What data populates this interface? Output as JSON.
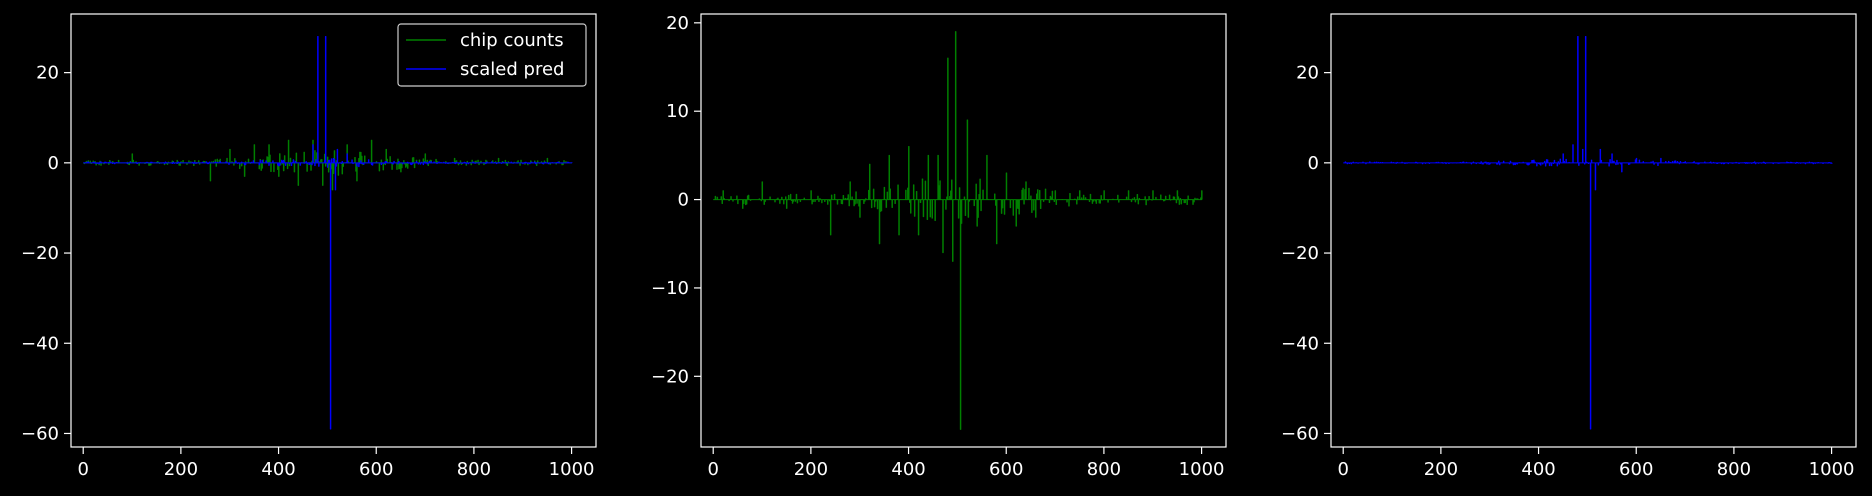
{
  "figure": {
    "background": "#000000",
    "foreground": "#ffffff"
  },
  "chart_data": [
    {
      "type": "line",
      "xlim": [
        -25,
        1050
      ],
      "ylim": [
        -63,
        33
      ],
      "xticks": [
        0,
        200,
        400,
        600,
        800,
        1000
      ],
      "yticks": [
        -60,
        -40,
        -20,
        0,
        20
      ],
      "xticklabels": [
        "0",
        "200",
        "400",
        "600",
        "800",
        "1000"
      ],
      "yticklabels": [
        "−60",
        "−40",
        "−20",
        "0",
        "20"
      ],
      "legend": {
        "loc": "upper right",
        "entries": [
          "chip counts",
          "scaled pred"
        ]
      },
      "series": [
        {
          "name": "chip counts",
          "color": "#008000",
          "x_range": [
            0,
            1000
          ],
          "baseline": 0,
          "spikes": [
            [
              100,
              2
            ],
            [
              260,
              -4
            ],
            [
              300,
              3
            ],
            [
              330,
              -3
            ],
            [
              350,
              4
            ],
            [
              380,
              4
            ],
            [
              400,
              -3
            ],
            [
              420,
              5
            ],
            [
              440,
              -5
            ],
            [
              470,
              5
            ],
            [
              490,
              -5
            ],
            [
              510,
              -6
            ],
            [
              540,
              4
            ],
            [
              560,
              -4
            ],
            [
              590,
              5
            ],
            [
              620,
              3
            ],
            [
              650,
              -2
            ],
            [
              700,
              2
            ],
            [
              760,
              1
            ],
            [
              850,
              1
            ],
            [
              950,
              1
            ]
          ]
        },
        {
          "name": "scaled pred",
          "color": "#0000ff",
          "x_range": [
            0,
            1000
          ],
          "baseline": 0,
          "spikes": [
            [
              480,
              28
            ],
            [
              496,
              28
            ],
            [
              505,
              -59
            ],
            [
              520,
              3
            ],
            [
              540,
              2
            ],
            [
              470,
              4
            ],
            [
              515,
              -6
            ]
          ]
        }
      ]
    },
    {
      "type": "line",
      "xlim": [
        -25,
        1050
      ],
      "ylim": [
        -28,
        21
      ],
      "xticks": [
        0,
        200,
        400,
        600,
        800,
        1000
      ],
      "yticks": [
        -20,
        -10,
        0,
        10,
        20
      ],
      "xticklabels": [
        "0",
        "200",
        "400",
        "600",
        "800",
        "1000"
      ],
      "yticklabels": [
        "−20",
        "−10",
        "0",
        "10",
        "20"
      ],
      "series": [
        {
          "name": "",
          "color": "#008000",
          "x_range": [
            0,
            1000
          ],
          "baseline": 0,
          "spikes": [
            [
              20,
              1
            ],
            [
              60,
              -1
            ],
            [
              100,
              2
            ],
            [
              150,
              -1
            ],
            [
              200,
              1
            ],
            [
              240,
              -4
            ],
            [
              280,
              2
            ],
            [
              300,
              -2
            ],
            [
              320,
              4
            ],
            [
              340,
              -5
            ],
            [
              360,
              5
            ],
            [
              380,
              -4
            ],
            [
              400,
              6
            ],
            [
              420,
              -4
            ],
            [
              440,
              5
            ],
            [
              460,
              5
            ],
            [
              470,
              -6
            ],
            [
              480,
              16
            ],
            [
              490,
              -7
            ],
            [
              495,
              19
            ],
            [
              505,
              -26
            ],
            [
              520,
              9
            ],
            [
              540,
              -3
            ],
            [
              560,
              5
            ],
            [
              580,
              -5
            ],
            [
              600,
              3
            ],
            [
              620,
              -3
            ],
            [
              640,
              2
            ],
            [
              660,
              -2
            ],
            [
              700,
              1
            ],
            [
              750,
              1
            ],
            [
              800,
              1
            ],
            [
              850,
              1
            ],
            [
              900,
              1
            ],
            [
              950,
              1
            ],
            [
              1000,
              1
            ]
          ]
        }
      ]
    },
    {
      "type": "line",
      "xlim": [
        -25,
        1050
      ],
      "ylim": [
        -63,
        33
      ],
      "xticks": [
        0,
        200,
        400,
        600,
        800,
        1000
      ],
      "yticks": [
        -60,
        -40,
        -20,
        0,
        20
      ],
      "xticklabels": [
        "0",
        "200",
        "400",
        "600",
        "800",
        "1000"
      ],
      "yticklabels": [
        "−60",
        "−40",
        "−20",
        "0",
        "20"
      ],
      "series": [
        {
          "name": "",
          "color": "#0000ff",
          "x_range": [
            0,
            1000
          ],
          "baseline": 0,
          "spikes": [
            [
              450,
              2
            ],
            [
              470,
              4
            ],
            [
              480,
              28
            ],
            [
              490,
              3
            ],
            [
              496,
              28
            ],
            [
              505,
              -59
            ],
            [
              515,
              -6
            ],
            [
              525,
              3
            ],
            [
              550,
              2
            ],
            [
              570,
              -2
            ],
            [
              600,
              1
            ],
            [
              650,
              1
            ]
          ]
        }
      ]
    }
  ]
}
